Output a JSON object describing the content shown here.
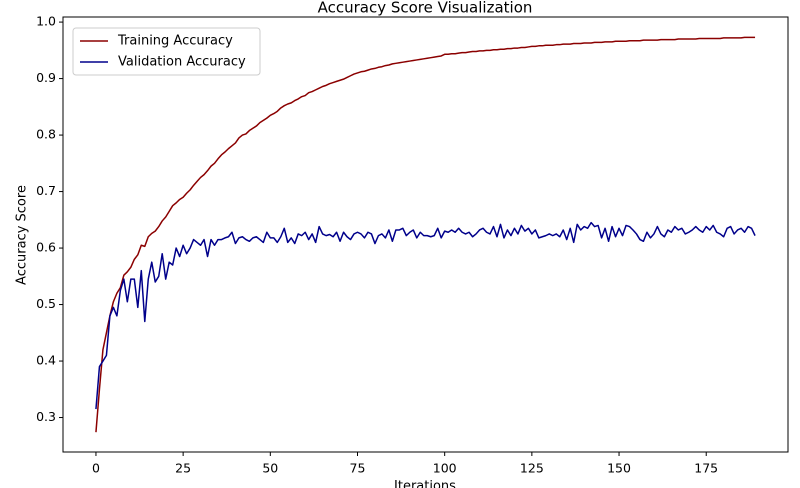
{
  "chart_data": {
    "type": "line",
    "title": "Accuracy Score Visualization",
    "x_label": "Iterations",
    "y_label": "Accuracy Score",
    "x": [
      0,
      1,
      2,
      3,
      4,
      5,
      6,
      7,
      8,
      9,
      10,
      11,
      12,
      13,
      14,
      15,
      16,
      17,
      18,
      19,
      20,
      21,
      22,
      23,
      24,
      25,
      26,
      27,
      28,
      29,
      30,
      31,
      32,
      33,
      34,
      35,
      36,
      37,
      38,
      39,
      40,
      41,
      42,
      43,
      44,
      45,
      46,
      47,
      48,
      49,
      50,
      51,
      52,
      53,
      54,
      55,
      56,
      57,
      58,
      59,
      60,
      61,
      62,
      63,
      64,
      65,
      66,
      67,
      68,
      69,
      70,
      71,
      72,
      73,
      74,
      75,
      76,
      77,
      78,
      79,
      80,
      81,
      82,
      83,
      84,
      85,
      86,
      87,
      88,
      89,
      90,
      91,
      92,
      93,
      94,
      95,
      96,
      97,
      98,
      99,
      100,
      101,
      102,
      103,
      104,
      105,
      106,
      107,
      108,
      109,
      110,
      111,
      112,
      113,
      114,
      115,
      116,
      117,
      118,
      119,
      120,
      121,
      122,
      123,
      124,
      125,
      126,
      127,
      128,
      129,
      130,
      131,
      132,
      133,
      134,
      135,
      136,
      137,
      138,
      139,
      140,
      141,
      142,
      143,
      144,
      145,
      146,
      147,
      148,
      149,
      150,
      151,
      152,
      153,
      154,
      155,
      156,
      157,
      158,
      159,
      160,
      161,
      162,
      163,
      164,
      165,
      166,
      167,
      168,
      169,
      170,
      171,
      172,
      173,
      174,
      175,
      176,
      177,
      178,
      179,
      180,
      181,
      182,
      183,
      184,
      185,
      186,
      187,
      188,
      189
    ],
    "series": [
      {
        "name": "Training Accuracy",
        "color": "#8b0000",
        "values": [
          0.274,
          0.35,
          0.42,
          0.45,
          0.48,
          0.505,
          0.52,
          0.53,
          0.552,
          0.558,
          0.566,
          0.58,
          0.588,
          0.605,
          0.603,
          0.62,
          0.626,
          0.63,
          0.638,
          0.648,
          0.655,
          0.665,
          0.675,
          0.68,
          0.686,
          0.69,
          0.697,
          0.703,
          0.711,
          0.718,
          0.725,
          0.73,
          0.737,
          0.745,
          0.75,
          0.758,
          0.765,
          0.77,
          0.776,
          0.781,
          0.786,
          0.795,
          0.8,
          0.802,
          0.808,
          0.812,
          0.816,
          0.822,
          0.826,
          0.83,
          0.835,
          0.838,
          0.842,
          0.848,
          0.852,
          0.855,
          0.857,
          0.861,
          0.864,
          0.868,
          0.87,
          0.875,
          0.877,
          0.88,
          0.883,
          0.886,
          0.888,
          0.891,
          0.893,
          0.895,
          0.897,
          0.899,
          0.902,
          0.905,
          0.908,
          0.91,
          0.912,
          0.913,
          0.915,
          0.917,
          0.918,
          0.92,
          0.921,
          0.923,
          0.924,
          0.926,
          0.927,
          0.928,
          0.929,
          0.93,
          0.931,
          0.932,
          0.933,
          0.934,
          0.935,
          0.936,
          0.937,
          0.938,
          0.939,
          0.94,
          0.943,
          0.943,
          0.944,
          0.944,
          0.945,
          0.946,
          0.946,
          0.947,
          0.948,
          0.948,
          0.949,
          0.949,
          0.95,
          0.95,
          0.951,
          0.951,
          0.952,
          0.952,
          0.953,
          0.953,
          0.954,
          0.954,
          0.955,
          0.955,
          0.956,
          0.957,
          0.957,
          0.958,
          0.958,
          0.959,
          0.959,
          0.959,
          0.96,
          0.96,
          0.961,
          0.961,
          0.961,
          0.962,
          0.962,
          0.962,
          0.963,
          0.963,
          0.963,
          0.964,
          0.964,
          0.964,
          0.965,
          0.965,
          0.965,
          0.966,
          0.966,
          0.966,
          0.966,
          0.967,
          0.967,
          0.967,
          0.967,
          0.968,
          0.968,
          0.968,
          0.968,
          0.968,
          0.969,
          0.969,
          0.969,
          0.969,
          0.969,
          0.97,
          0.97,
          0.97,
          0.97,
          0.97,
          0.97,
          0.971,
          0.971,
          0.971,
          0.971,
          0.971,
          0.971,
          0.971,
          0.972,
          0.972,
          0.972,
          0.972,
          0.972,
          0.972,
          0.973,
          0.973,
          0.973,
          0.973
        ]
      },
      {
        "name": "Validation Accuracy",
        "color": "#00008b",
        "values": [
          0.315,
          0.39,
          0.4,
          0.41,
          0.48,
          0.495,
          0.48,
          0.525,
          0.545,
          0.505,
          0.545,
          0.545,
          0.495,
          0.56,
          0.47,
          0.545,
          0.575,
          0.54,
          0.55,
          0.59,
          0.545,
          0.575,
          0.57,
          0.6,
          0.585,
          0.605,
          0.59,
          0.6,
          0.615,
          0.61,
          0.605,
          0.615,
          0.585,
          0.615,
          0.605,
          0.615,
          0.615,
          0.618,
          0.62,
          0.628,
          0.608,
          0.618,
          0.62,
          0.615,
          0.612,
          0.618,
          0.62,
          0.615,
          0.61,
          0.628,
          0.618,
          0.618,
          0.61,
          0.62,
          0.635,
          0.61,
          0.618,
          0.608,
          0.625,
          0.622,
          0.628,
          0.615,
          0.625,
          0.61,
          0.638,
          0.625,
          0.622,
          0.624,
          0.62,
          0.628,
          0.612,
          0.628,
          0.62,
          0.615,
          0.625,
          0.628,
          0.625,
          0.618,
          0.628,
          0.625,
          0.608,
          0.622,
          0.625,
          0.618,
          0.632,
          0.612,
          0.632,
          0.632,
          0.635,
          0.622,
          0.628,
          0.632,
          0.618,
          0.628,
          0.622,
          0.622,
          0.62,
          0.622,
          0.635,
          0.618,
          0.63,
          0.628,
          0.632,
          0.628,
          0.635,
          0.628,
          0.625,
          0.628,
          0.62,
          0.625,
          0.632,
          0.635,
          0.628,
          0.625,
          0.638,
          0.62,
          0.642,
          0.618,
          0.632,
          0.622,
          0.635,
          0.625,
          0.64,
          0.63,
          0.635,
          0.625,
          0.632,
          0.618,
          0.62,
          0.622,
          0.625,
          0.622,
          0.625,
          0.62,
          0.632,
          0.615,
          0.635,
          0.61,
          0.642,
          0.632,
          0.638,
          0.635,
          0.645,
          0.638,
          0.64,
          0.618,
          0.635,
          0.612,
          0.638,
          0.62,
          0.635,
          0.622,
          0.64,
          0.638,
          0.632,
          0.625,
          0.615,
          0.612,
          0.628,
          0.618,
          0.625,
          0.638,
          0.625,
          0.62,
          0.632,
          0.628,
          0.638,
          0.632,
          0.635,
          0.625,
          0.628,
          0.632,
          0.638,
          0.632,
          0.628,
          0.638,
          0.632,
          0.64,
          0.628,
          0.625,
          0.62,
          0.635,
          0.638,
          0.625,
          0.632,
          0.635,
          0.628,
          0.638,
          0.635,
          0.622
        ]
      }
    ],
    "xlim": [
      -9.45,
      198.45
    ],
    "ylim": [
      0.239,
      1.009
    ],
    "xticks": [
      0,
      25,
      50,
      75,
      100,
      125,
      150,
      175
    ],
    "yticks": [
      0.3,
      0.4,
      0.5,
      0.6,
      0.7,
      0.8,
      0.9,
      {
        "value": 1,
        "label": "1.0"
      }
    ],
    "grid": false,
    "legend": "upper left"
  }
}
